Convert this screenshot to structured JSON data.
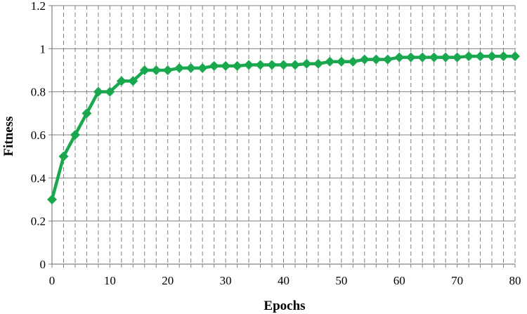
{
  "chart_data": {
    "type": "line",
    "title": "",
    "xlabel": "Epochs",
    "ylabel": "Fitness",
    "xlim": [
      0,
      80
    ],
    "ylim": [
      0,
      1.2
    ],
    "x_ticks": [
      "0",
      "10",
      "20",
      "30",
      "40",
      "50",
      "60",
      "70",
      "80"
    ],
    "y_ticks": [
      "0",
      "0.2",
      "0.4",
      "0.6",
      "0.8",
      "1",
      "1.2"
    ],
    "grid": {
      "horizontal": "solid",
      "vertical": "dashed",
      "vertical_step": 2
    },
    "legend": "none",
    "series": [
      {
        "color": "#1aa84f",
        "marker": "diamond",
        "x": [
          0,
          2,
          4,
          6,
          8,
          10,
          12,
          14,
          16,
          18,
          20,
          22,
          24,
          26,
          28,
          30,
          32,
          34,
          36,
          38,
          40,
          42,
          44,
          46,
          48,
          50,
          52,
          54,
          56,
          58,
          60,
          62,
          64,
          66,
          68,
          70,
          72,
          74,
          76,
          78,
          80
        ],
        "y": [
          0.3,
          0.5,
          0.6,
          0.7,
          0.8,
          0.8,
          0.85,
          0.85,
          0.9,
          0.9,
          0.9,
          0.91,
          0.91,
          0.91,
          0.92,
          0.92,
          0.92,
          0.925,
          0.925,
          0.925,
          0.925,
          0.925,
          0.93,
          0.93,
          0.94,
          0.94,
          0.94,
          0.95,
          0.95,
          0.95,
          0.96,
          0.96,
          0.96,
          0.96,
          0.96,
          0.96,
          0.965,
          0.965,
          0.965,
          0.965,
          0.965
        ]
      }
    ]
  }
}
